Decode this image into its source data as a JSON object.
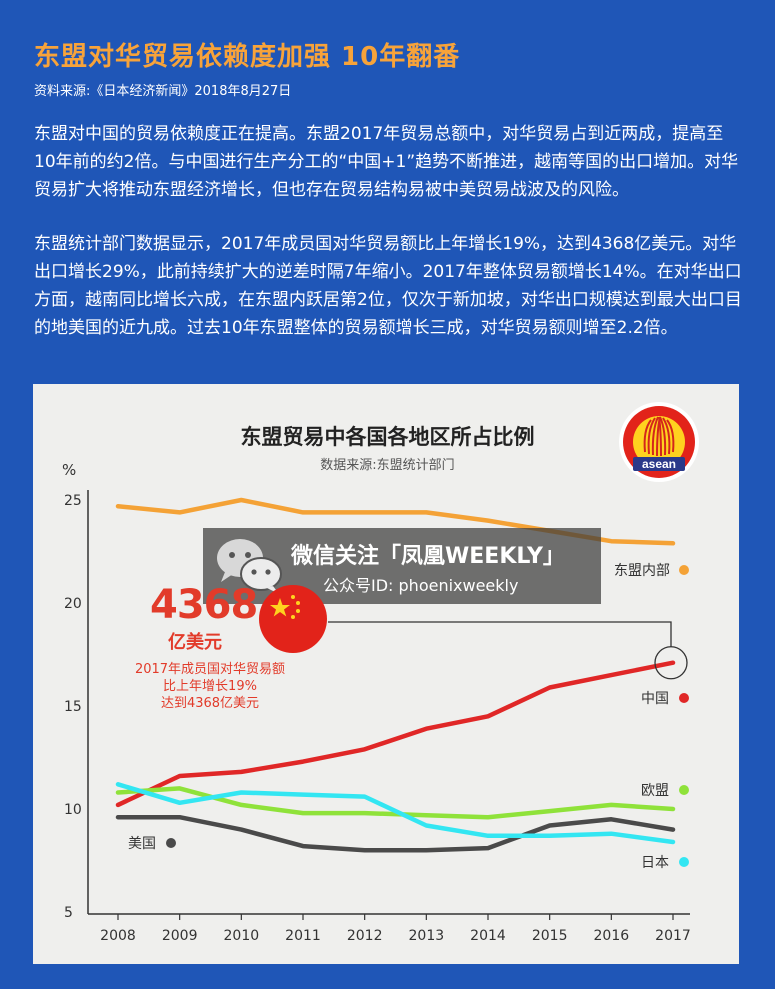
{
  "header": {
    "title": "东盟对华贸易依赖度加强  10年翻番",
    "source": "资料来源:《日本经济新闻》2018年8月27日"
  },
  "body": {
    "paragraph1": "东盟对中国的贸易依赖度正在提高。东盟2017年贸易总额中，对华贸易占到近两成，提高至10年前的约2倍。与中国进行生产分工的“中国+1”趋势不断推进，越南等国的出口增加。对华贸易扩大将推动东盟经济增长，但也存在贸易结构易被中美贸易战波及的风险。",
    "paragraph2": "东盟统计部门数据显示，2017年成员国对华贸易额比上年增长19%，达到4368亿美元。对华出口增长29%，此前持续扩大的逆差时隔7年缩小。2017年整体贸易额增长14%。在对华出口方面，越南同比增长六成，在东盟内跃居第2位，仅次于新加坡，对华出口规模达到最大出口目的地美国的近九成。过去10年东盟整体的贸易额增长三成，对华贸易额则增至2.2倍。"
  },
  "logo": {
    "text": "asean"
  },
  "watermark": {
    "line1": "微信关注「凤凰WEEKLY」",
    "line2": "公众号ID: phoenixweekly"
  },
  "annotation": {
    "number": "4368",
    "unit": "亿美元",
    "note_lines": [
      "2017年成员国对华贸易额",
      "比上年增长19%",
      "达到4368亿美元"
    ]
  },
  "chart_data": {
    "type": "line",
    "title": "东盟贸易中各国各地区所占比例",
    "subtitle": "数据来源:东盟统计部门",
    "ylabel": "%",
    "ylim": [
      5,
      25
    ],
    "yticks": [
      5,
      10,
      15,
      20,
      25
    ],
    "x": [
      "2008",
      "2009",
      "2010",
      "2011",
      "2012",
      "2013",
      "2014",
      "2015",
      "2016",
      "2017"
    ],
    "series": [
      {
        "name": "东盟内部",
        "color": "#f4a236",
        "values": [
          24.7,
          24.4,
          25.0,
          24.4,
          24.4,
          24.4,
          24.0,
          23.5,
          23.0,
          22.9
        ]
      },
      {
        "name": "中国",
        "color": "#e02727",
        "values": [
          10.2,
          11.6,
          11.8,
          12.3,
          12.9,
          13.9,
          14.5,
          15.9,
          16.5,
          17.1
        ]
      },
      {
        "name": "欧盟",
        "color": "#8fe23a",
        "values": [
          10.8,
          11.0,
          10.2,
          9.8,
          9.8,
          9.7,
          9.6,
          9.9,
          10.2,
          10.0
        ]
      },
      {
        "name": "美国",
        "color": "#4a4a4a",
        "values": [
          9.6,
          9.6,
          9.0,
          8.2,
          8.0,
          8.0,
          8.1,
          9.2,
          9.5,
          9.0
        ]
      },
      {
        "name": "日本",
        "color": "#33e6f2",
        "values": [
          11.2,
          10.3,
          10.8,
          10.7,
          10.6,
          9.2,
          8.7,
          8.7,
          8.8,
          8.4
        ]
      }
    ]
  }
}
